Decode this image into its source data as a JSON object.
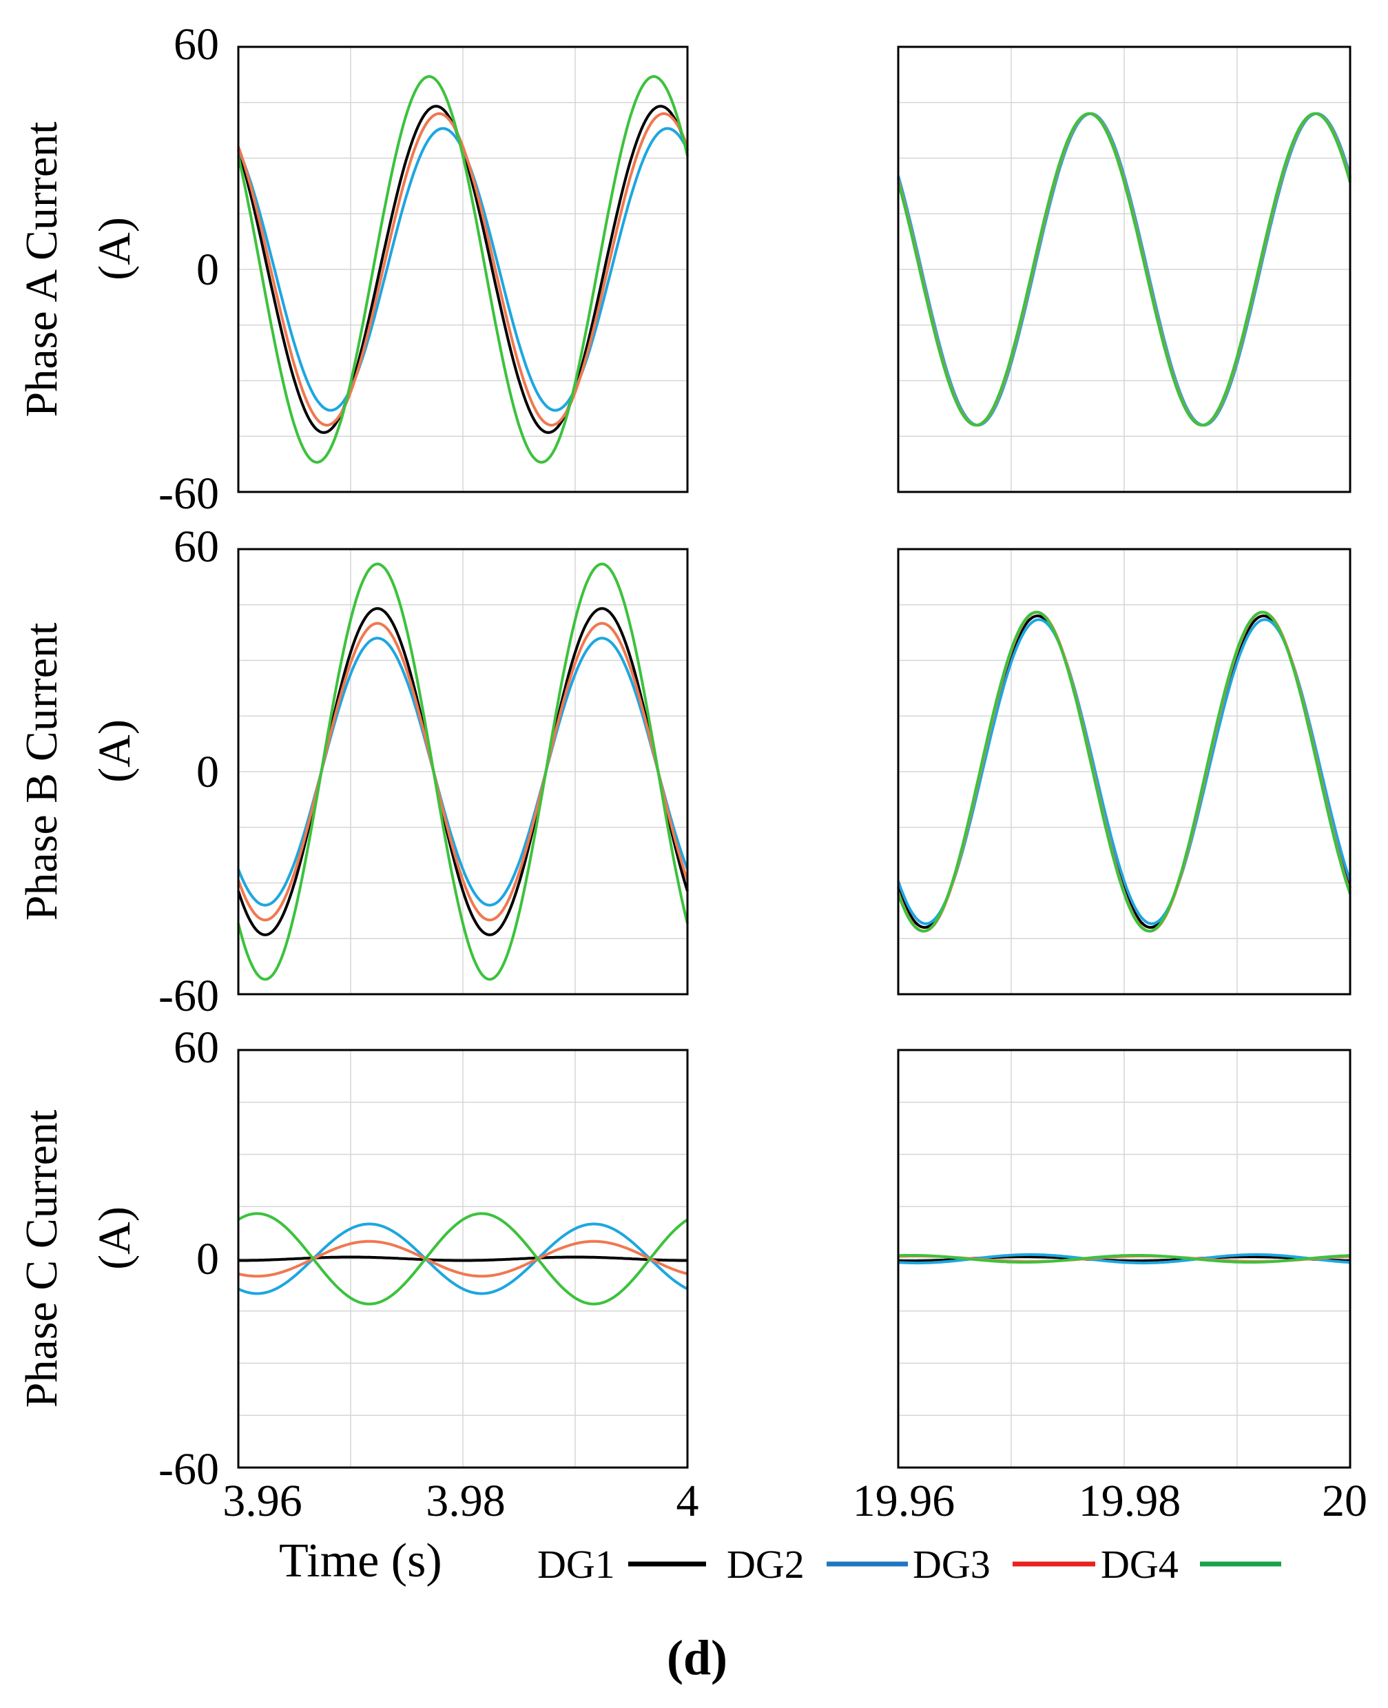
{
  "chart_data": {
    "type": "line",
    "subfigure_label": "(d)",
    "xlabel": "Time (s)",
    "legend": [
      {
        "name": "DG1",
        "color": "#000000"
      },
      {
        "name": "DG2",
        "color": "#1f77c4"
      },
      {
        "name": "DG3",
        "color": "#e8211e"
      },
      {
        "name": "DG4",
        "color": "#16a34a"
      }
    ],
    "plot_colors": {
      "DG1": "#000000",
      "DG2": "#1ea6e0",
      "DG3": "#f07850",
      "DG4": "#3cc23c"
    },
    "ylim": [
      -60,
      60
    ],
    "yticks": [
      "60",
      "0",
      "-60"
    ],
    "yticks_bottom": [
      "60",
      "0",
      "-60"
    ],
    "xlim_left": [
      3.96,
      4.0
    ],
    "xlim_right": [
      19.96,
      20.0
    ],
    "xticks_left": [
      "3.96",
      "3.98",
      "4"
    ],
    "xticks_right": [
      "19.96",
      "19.98",
      "20"
    ],
    "frequency_hz": 50,
    "rows": [
      {
        "ylabel_line1": "Phase A Current",
        "ylabel_line2": "(A)",
        "left_series": [
          {
            "name": "DG1",
            "amplitude": 44,
            "phase_deg": 133
          },
          {
            "name": "DG2",
            "amplitude": 38,
            "phase_deg": 122
          },
          {
            "name": "DG3",
            "amplitude": 42,
            "phase_deg": 128
          },
          {
            "name": "DG4",
            "amplitude": 52,
            "phase_deg": 144
          }
        ],
        "right_series": [
          {
            "name": "DG1",
            "amplitude": 42,
            "phase_deg": 144
          },
          {
            "name": "DG2",
            "amplitude": 42,
            "phase_deg": 143
          },
          {
            "name": "DG3",
            "amplitude": 42,
            "phase_deg": 145
          },
          {
            "name": "DG4",
            "amplitude": 42,
            "phase_deg": 146
          }
        ]
      },
      {
        "ylabel_line1": "Phase B Current",
        "ylabel_line2": "(A)",
        "left_series": [
          {
            "name": "DG1",
            "amplitude": 44,
            "phase_deg": 227
          },
          {
            "name": "DG2",
            "amplitude": 36,
            "phase_deg": 227
          },
          {
            "name": "DG3",
            "amplitude": 40,
            "phase_deg": 227
          },
          {
            "name": "DG4",
            "amplitude": 56,
            "phase_deg": 227
          }
        ],
        "right_series": [
          {
            "name": "DG1",
            "amplitude": 42,
            "phase_deg": 228
          },
          {
            "name": "DG2",
            "amplitude": 41,
            "phase_deg": 226
          },
          {
            "name": "DG3",
            "amplitude": 43,
            "phase_deg": 229
          },
          {
            "name": "DG4",
            "amplitude": 43,
            "phase_deg": 230
          }
        ]
      },
      {
        "ylabel_line1": "Phase C Current",
        "ylabel_line2": "(A)",
        "left_series": [
          {
            "name": "DG1",
            "amplitude": 0.5,
            "phase_deg": 270
          },
          {
            "name": "DG2",
            "amplitude": 10,
            "phase_deg": 240
          },
          {
            "name": "DG3",
            "amplitude": 5,
            "phase_deg": 240
          },
          {
            "name": "DG4",
            "amplitude": 13,
            "phase_deg": 60
          }
        ],
        "right_series": [
          {
            "name": "DG1",
            "amplitude": 0.6,
            "phase_deg": 250
          },
          {
            "name": "DG2",
            "amplitude": 1.2,
            "phase_deg": 240
          },
          {
            "name": "DG3",
            "amplitude": 0.8,
            "phase_deg": 60
          },
          {
            "name": "DG4",
            "amplitude": 1.0,
            "phase_deg": 70
          }
        ]
      }
    ]
  }
}
